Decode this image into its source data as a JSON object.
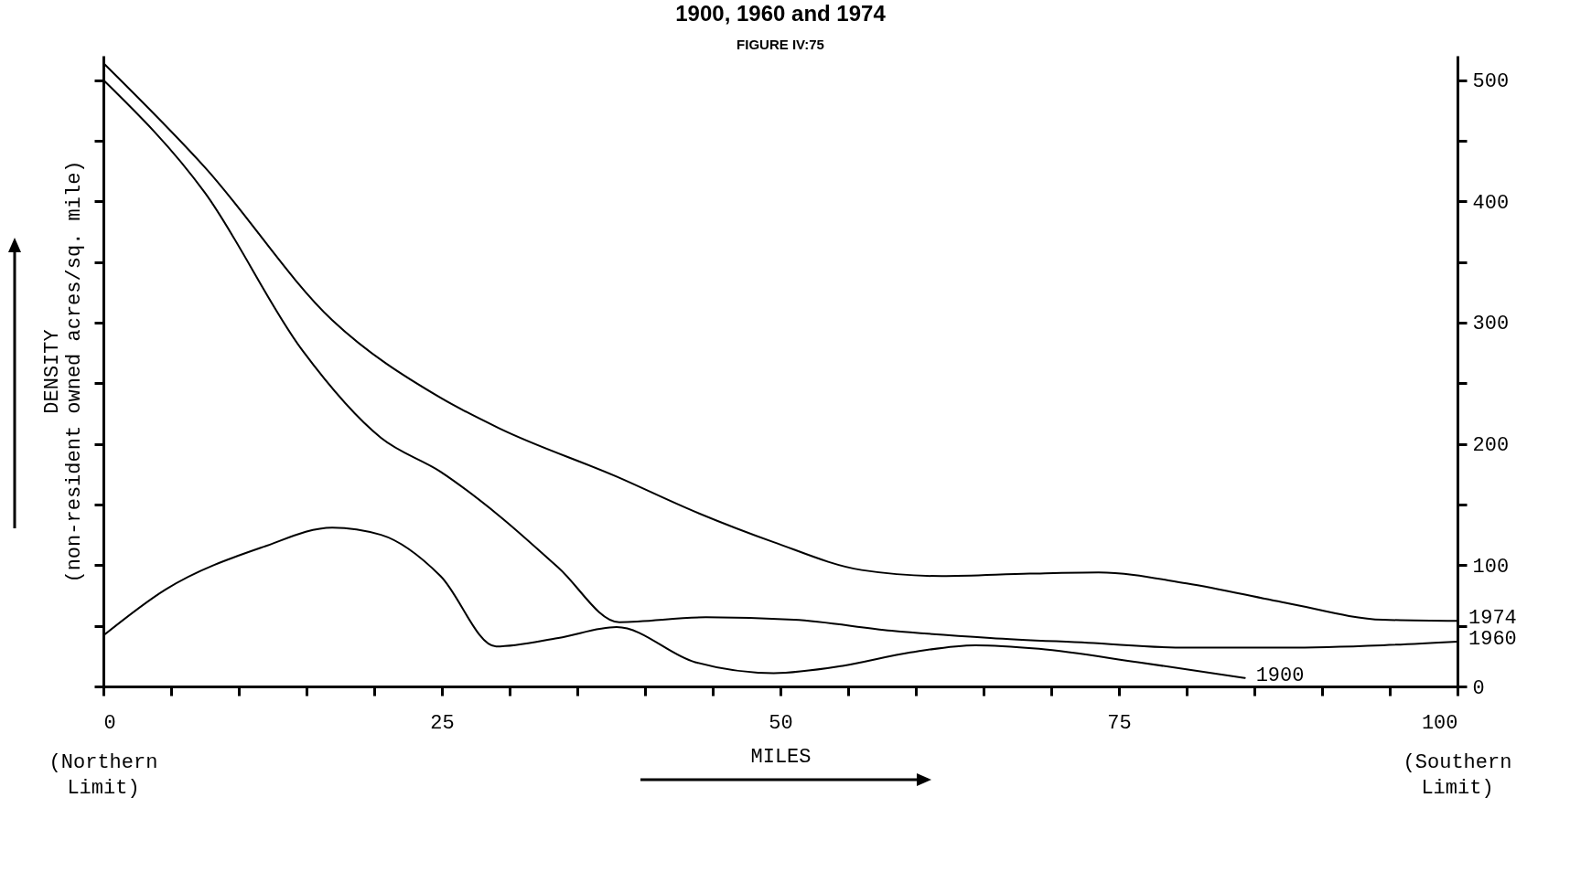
{
  "chart_data": {
    "type": "line",
    "title": "1900, 1960 and 1974",
    "subtitle": "FIGURE IV:75",
    "xlabel": "MILES",
    "ylabel": "DENSITY (non-resident owned acres/sq. mile)",
    "xlim": [
      0,
      100
    ],
    "ylim": [
      0,
      520
    ],
    "xticks": [
      0,
      {
        "value": 5,
        "label": null
      },
      {
        "value": 10,
        "label": null
      },
      {
        "value": 15,
        "label": null
      },
      {
        "value": 20,
        "label": null
      },
      25,
      {
        "value": 30,
        "label": null
      },
      {
        "value": 35,
        "label": null
      },
      {
        "value": 40,
        "label": null
      },
      {
        "value": 45,
        "label": null
      },
      50,
      {
        "value": 55,
        "label": null
      },
      {
        "value": 60,
        "label": null
      },
      {
        "value": 65,
        "label": null
      },
      {
        "value": 70,
        "label": null
      },
      75,
      {
        "value": 80,
        "label": null
      },
      {
        "value": 85,
        "label": null
      },
      {
        "value": 90,
        "label": null
      },
      {
        "value": 95,
        "label": null
      },
      100
    ],
    "yticks": [
      0,
      {
        "value": 50,
        "label": null
      },
      100,
      {
        "value": 150,
        "label": null
      },
      200,
      {
        "value": 250,
        "label": null
      },
      300,
      {
        "value": 350,
        "label": null
      },
      400,
      {
        "value": 450,
        "label": null
      },
      500
    ],
    "grid": false,
    "legend": false,
    "line_style": "solid",
    "marker": "none",
    "annotations": [
      "(Northern Limit)",
      "(Southern Limit)"
    ],
    "series": [
      {
        "name": "1974",
        "color": "#000000",
        "x": [
          0,
          7.5,
          16.9,
          24.9,
          29.2,
          37.9,
          43.7,
          49.5,
          56,
          61.9,
          68.4,
          73.5,
          80,
          87.3,
          94.5,
          100
        ],
        "values": [
          514,
          428,
          302,
          238,
          213,
          173,
          144,
          119,
          96,
          91,
          93,
          94,
          85,
          69,
          55,
          54
        ]
      },
      {
        "name": "1960",
        "color": "#000000",
        "x": [
          0,
          7.5,
          14.7,
          20.5,
          24.9,
          29.2,
          33.6,
          38.1,
          44.5,
          51,
          58.2,
          65.5,
          72.7,
          80,
          87.3,
          94.5,
          100
        ],
        "values": [
          500,
          407,
          277,
          205,
          177,
          141,
          98,
          53,
          57,
          55,
          46,
          40,
          36,
          32,
          32,
          34,
          37
        ]
      },
      {
        "name": "1900",
        "color": "#000000",
        "x": [
          0,
          4.6,
          11.8,
          16.9,
          20.5,
          24.9,
          29,
          33.6,
          37.9,
          43.7,
          49.5,
          54.6,
          59.6,
          64.4,
          69.1,
          76.4,
          84.3
        ],
        "values": [
          42,
          80,
          115,
          131,
          125,
          91,
          33,
          40,
          49,
          20,
          11,
          17,
          28,
          34,
          31,
          20,
          7
        ]
      }
    ]
  }
}
